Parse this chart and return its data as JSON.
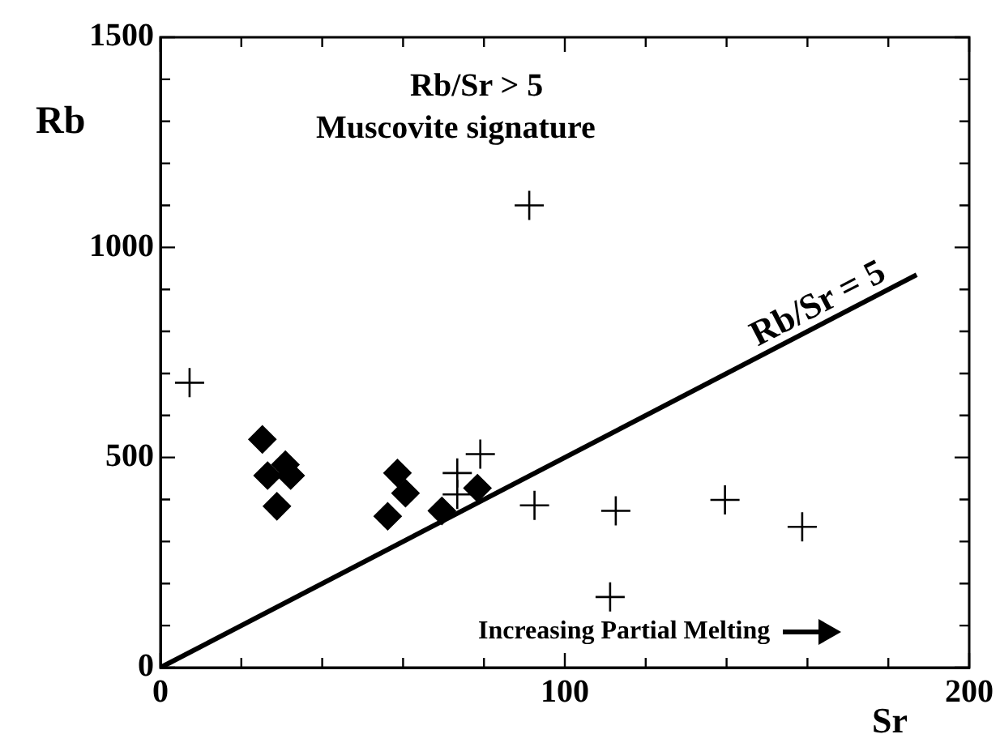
{
  "chart_data": {
    "type": "scatter",
    "xlabel": "Sr",
    "ylabel": "Rb",
    "xlim": [
      0,
      200
    ],
    "ylim": [
      0,
      1500
    ],
    "xticks": [
      0,
      {
        "value": 20,
        "label": null
      },
      {
        "value": 40,
        "label": null
      },
      {
        "value": 60,
        "label": null
      },
      {
        "value": 80,
        "label": null
      },
      100,
      {
        "value": 120,
        "label": null
      },
      {
        "value": 140,
        "label": null
      },
      {
        "value": 160,
        "label": null
      },
      {
        "value": 180,
        "label": null
      },
      200
    ],
    "yticks": [
      0,
      {
        "value": 100,
        "label": null
      },
      {
        "value": 200,
        "label": null
      },
      {
        "value": 300,
        "label": null
      },
      {
        "value": 400,
        "label": null
      },
      500,
      {
        "value": 600,
        "label": null
      },
      {
        "value": 700,
        "label": null
      },
      {
        "value": 800,
        "label": null
      },
      {
        "value": 900,
        "label": null
      },
      1000,
      {
        "value": 1100,
        "label": null
      },
      {
        "value": 1200,
        "label": null
      },
      {
        "value": 1300,
        "label": null
      },
      {
        "value": 1400,
        "label": null
      },
      1500
    ],
    "grid": false,
    "legend": false,
    "series": [
      {
        "type": "scatter",
        "marker": "diamond",
        "color": "#000000",
        "x": [
          25.2,
          26.5,
          30.9,
          32.2,
          28.8,
          58.6,
          60.6,
          56.2,
          69.6,
          78.4
        ],
        "values": [
          543,
          457,
          483,
          457,
          384,
          463,
          415,
          360,
          373,
          427
        ]
      },
      {
        "type": "scatter",
        "marker": "cross",
        "color": "#000000",
        "x": [
          7.2,
          91.2,
          73.4,
          73.4,
          79.1,
          92.5,
          112.6,
          111.2,
          139.6,
          158.7
        ],
        "values": [
          678,
          1100,
          463,
          412,
          508,
          386,
          373,
          168,
          399,
          335
        ]
      },
      {
        "type": "line",
        "marker": "none",
        "color": "#000000",
        "x": [
          0,
          187
        ],
        "values": [
          0,
          935
        ]
      }
    ],
    "annotations": [
      "Rb/Sr > 5",
      "Muscovite signature",
      "Rb/Sr = 5",
      "Increasing Partial Melting"
    ]
  }
}
